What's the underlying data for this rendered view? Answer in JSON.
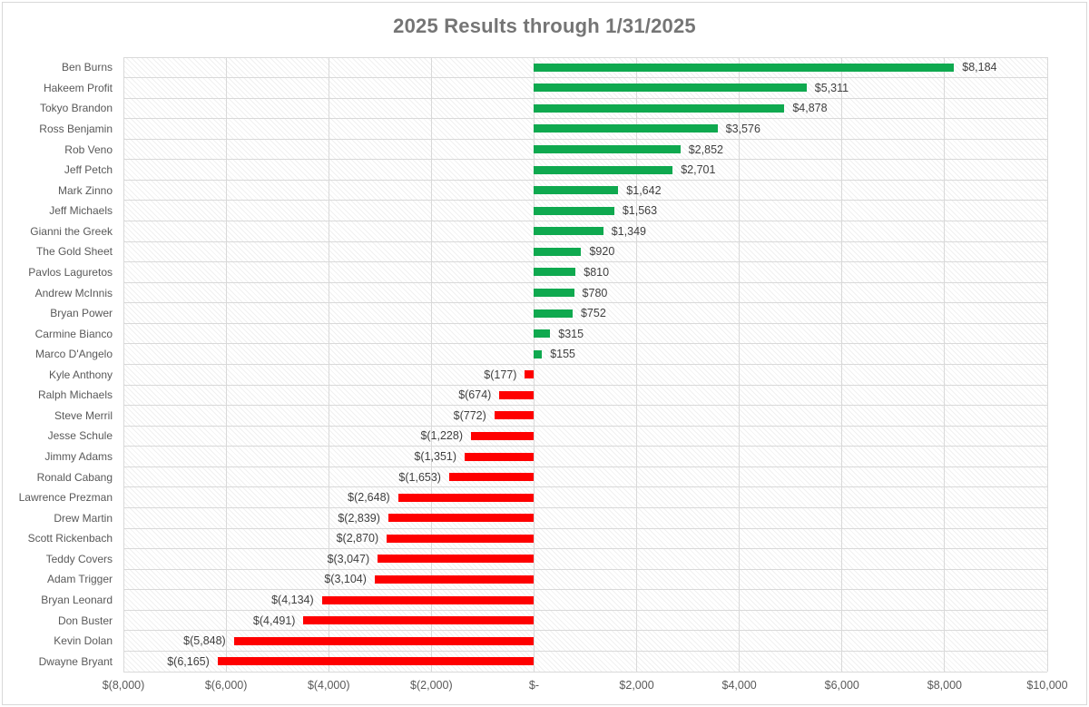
{
  "title": "2025 Results through 1/31/2025",
  "chart_data": {
    "type": "bar",
    "orientation": "horizontal",
    "title": "2025 Results through 1/31/2025",
    "categories": [
      "Ben Burns",
      "Hakeem Profit",
      "Tokyo Brandon",
      "Ross Benjamin",
      "Rob Veno",
      "Jeff Petch",
      "Mark Zinno",
      "Jeff Michaels",
      "Gianni the Greek",
      "The Gold Sheet",
      "Pavlos Laguretos",
      "Andrew McInnis",
      "Bryan Power",
      "Carmine Bianco",
      "Marco D'Angelo",
      "Kyle Anthony",
      "Ralph Michaels",
      "Steve Merril",
      "Jesse Schule",
      "Jimmy Adams",
      "Ronald Cabang",
      "Lawrence Prezman",
      "Drew Martin",
      "Scott Rickenbach",
      "Teddy Covers",
      "Adam Trigger",
      "Bryan Leonard",
      "Don Buster",
      "Kevin Dolan",
      "Dwayne Bryant"
    ],
    "values": [
      8184,
      5311,
      4878,
      3576,
      2852,
      2701,
      1642,
      1563,
      1349,
      920,
      810,
      780,
      752,
      315,
      155,
      -177,
      -674,
      -772,
      -1228,
      -1351,
      -1653,
      -2648,
      -2839,
      -2870,
      -3047,
      -3104,
      -4134,
      -4491,
      -5848,
      -6165
    ],
    "data_labels": [
      "$8,184",
      "$5,311",
      "$4,878",
      "$3,576",
      "$2,852",
      "$2,701",
      "$1,642",
      "$1,563",
      "$1,349",
      "$920",
      "$810",
      "$780",
      "$752",
      "$315",
      "$155",
      "$(177)",
      "$(674)",
      "$(772)",
      "$(1,228)",
      "$(1,351)",
      "$(1,653)",
      "$(2,648)",
      "$(2,839)",
      "$(2,870)",
      "$(3,047)",
      "$(3,104)",
      "$(4,134)",
      "$(4,491)",
      "$(5,848)",
      "$(6,165)"
    ],
    "x_tick_labels": [
      "$(8,000)",
      "$(6,000)",
      "$(4,000)",
      "$(2,000)",
      "$-",
      "$2,000",
      "$4,000",
      "$6,000",
      "$8,000",
      "$10,000"
    ],
    "xlim": [
      -8000,
      10000
    ],
    "grid": true,
    "legend": "none",
    "colors": {
      "positive_bar": "#0fa94f",
      "negative_bar": "#fe0000",
      "gridline": "#d9d9d9",
      "plot_hatch": "#6e6e6e1a",
      "title_text": "#757575",
      "axis_text": "#595959",
      "value_text": "#3f3f3f",
      "chart_border": "#d8d8d8"
    }
  }
}
